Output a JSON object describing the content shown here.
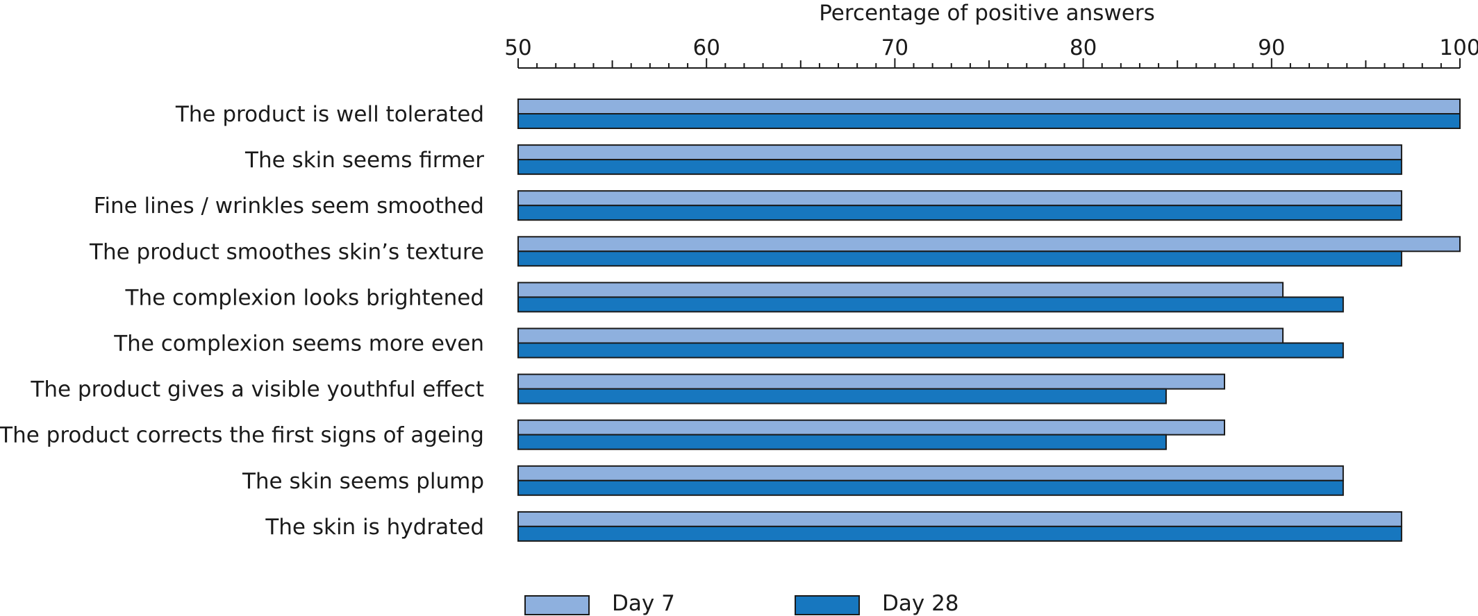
{
  "chart_data": {
    "type": "bar",
    "orientation": "horizontal",
    "xlabel": "Percentage of positive answers",
    "xlim": [
      50,
      100
    ],
    "x_ticks": [
      50,
      60,
      70,
      80,
      90,
      100
    ],
    "x_axis_position": "top",
    "grid": false,
    "legend_position": "bottom-left",
    "categories": [
      "The product is well tolerated",
      "The skin seems firmer",
      "Fine lines / wrinkles seem smoothed",
      "The product smoothes skin’s texture",
      "The complexion looks brightened",
      "The complexion seems more even",
      "The product gives a visible youthful effect",
      "The product corrects the first signs of ageing",
      "The skin seems plump",
      "The skin is hydrated"
    ],
    "series": [
      {
        "name": "Day 7",
        "color": "#8eb0de",
        "values": [
          100,
          96.9,
          96.9,
          100,
          90.6,
          90.6,
          87.5,
          87.5,
          93.8,
          96.9
        ]
      },
      {
        "name": "Day 28",
        "color": "#1777bf",
        "values": [
          100,
          96.9,
          96.9,
          96.9,
          93.8,
          93.8,
          84.4,
          84.4,
          93.8,
          96.9
        ]
      }
    ]
  }
}
